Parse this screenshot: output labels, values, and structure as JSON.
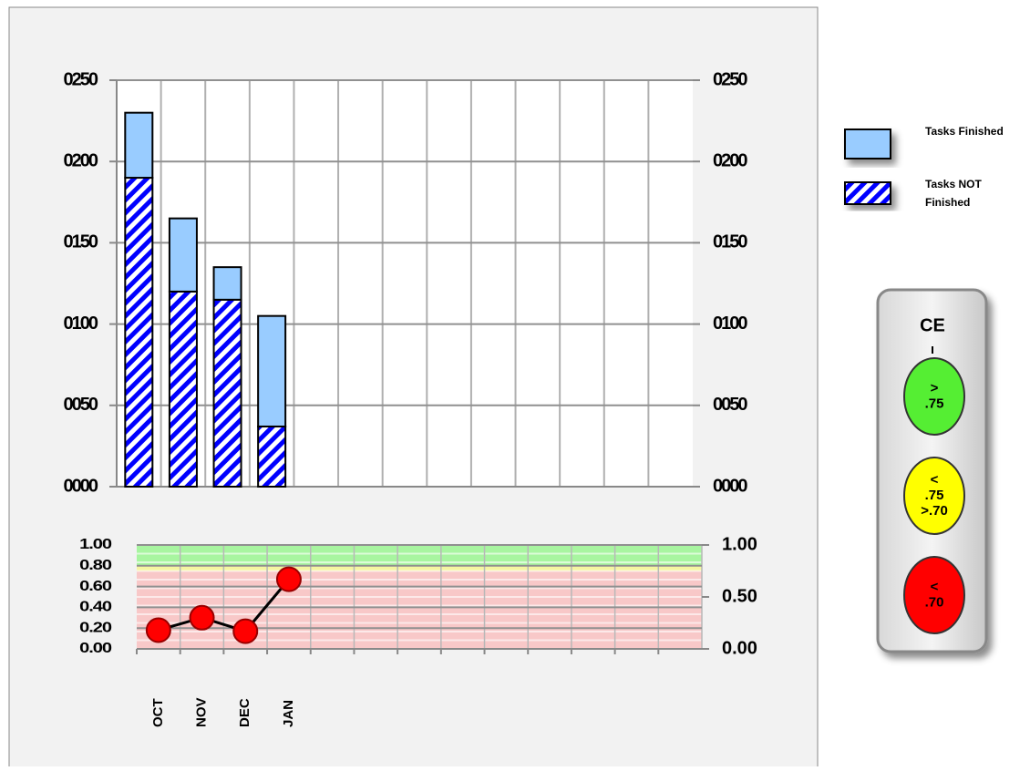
{
  "chart_data": [
    {
      "type": "bar",
      "stacked": true,
      "series": [
        {
          "name": "Tasks NOT Finished",
          "color": "#0000ff",
          "hatched": true,
          "values": [
            190,
            120,
            115,
            37,
            null,
            null,
            null,
            null,
            null,
            null,
            null,
            null,
            null
          ]
        },
        {
          "name": "Tasks Finished",
          "color": "#99ccff",
          "hatched": false,
          "values": [
            40,
            45,
            20,
            68,
            null,
            null,
            null,
            null,
            null,
            null,
            null,
            null,
            null
          ]
        }
      ],
      "ylim": [
        0,
        250
      ],
      "yticks": [
        {
          "value": 0,
          "label": "0000"
        },
        {
          "value": 50,
          "label": "0050"
        },
        {
          "value": 100,
          "label": "0100"
        },
        {
          "value": 150,
          "label": "0150"
        },
        {
          "value": 200,
          "label": "0200"
        },
        {
          "value": 250,
          "label": "0250"
        }
      ],
      "y2lim": [
        0,
        250
      ],
      "y2ticks": [
        {
          "value": 0,
          "label": "0000"
        },
        {
          "value": 50,
          "label": "0050"
        },
        {
          "value": 100,
          "label": "0100"
        },
        {
          "value": 150,
          "label": "0150"
        },
        {
          "value": 200,
          "label": "0200"
        },
        {
          "value": 250,
          "label": "0250"
        }
      ],
      "grid": true
    },
    {
      "type": "line",
      "categories": [
        "OCT",
        "NOV",
        "DEC",
        "JAN",
        null,
        null,
        null,
        null,
        null,
        null,
        null,
        null,
        null
      ],
      "series": [
        {
          "color": "#ff0000",
          "line_color": "#000000",
          "values": [
            0.18,
            0.3,
            0.17,
            0.67,
            null,
            null,
            null,
            null,
            null,
            null,
            null,
            null,
            null
          ]
        }
      ],
      "bands": [
        {
          "from": 0.8,
          "to": 1.0,
          "color": "#a8f5a0"
        },
        {
          "from": 0.75,
          "to": 0.8,
          "color": "#f5f5a0"
        },
        {
          "from": 0,
          "to": 0.75,
          "color": "#f8c8c8"
        }
      ],
      "ylim": [
        0,
        1
      ],
      "yticks": [
        {
          "value": 0,
          "label": "0.00"
        },
        {
          "value": 0.2,
          "label": "0.20"
        },
        {
          "value": 0.4,
          "label": "0.40"
        },
        {
          "value": 0.6,
          "label": "0.60"
        },
        {
          "value": 0.8,
          "label": "0.80"
        },
        {
          "value": 1,
          "label": "1.00"
        }
      ],
      "y2lim": [
        0,
        1
      ],
      "y2ticks": [
        {
          "value": 0,
          "label": "0.00"
        },
        {
          "value": 0.5,
          "label": "0.50"
        },
        {
          "value": 1,
          "label": "1.00"
        }
      ],
      "grid": true
    }
  ],
  "status_panel": {
    "title": "CE",
    "lights": [
      {
        "color": "#55ee33",
        "lines": [
          ">",
          ".75"
        ]
      },
      {
        "color": "#ffff00",
        "lines": [
          "<",
          ".75",
          ">.70"
        ]
      },
      {
        "color": "#ff0000",
        "lines": [
          "<",
          ".70"
        ]
      }
    ]
  }
}
